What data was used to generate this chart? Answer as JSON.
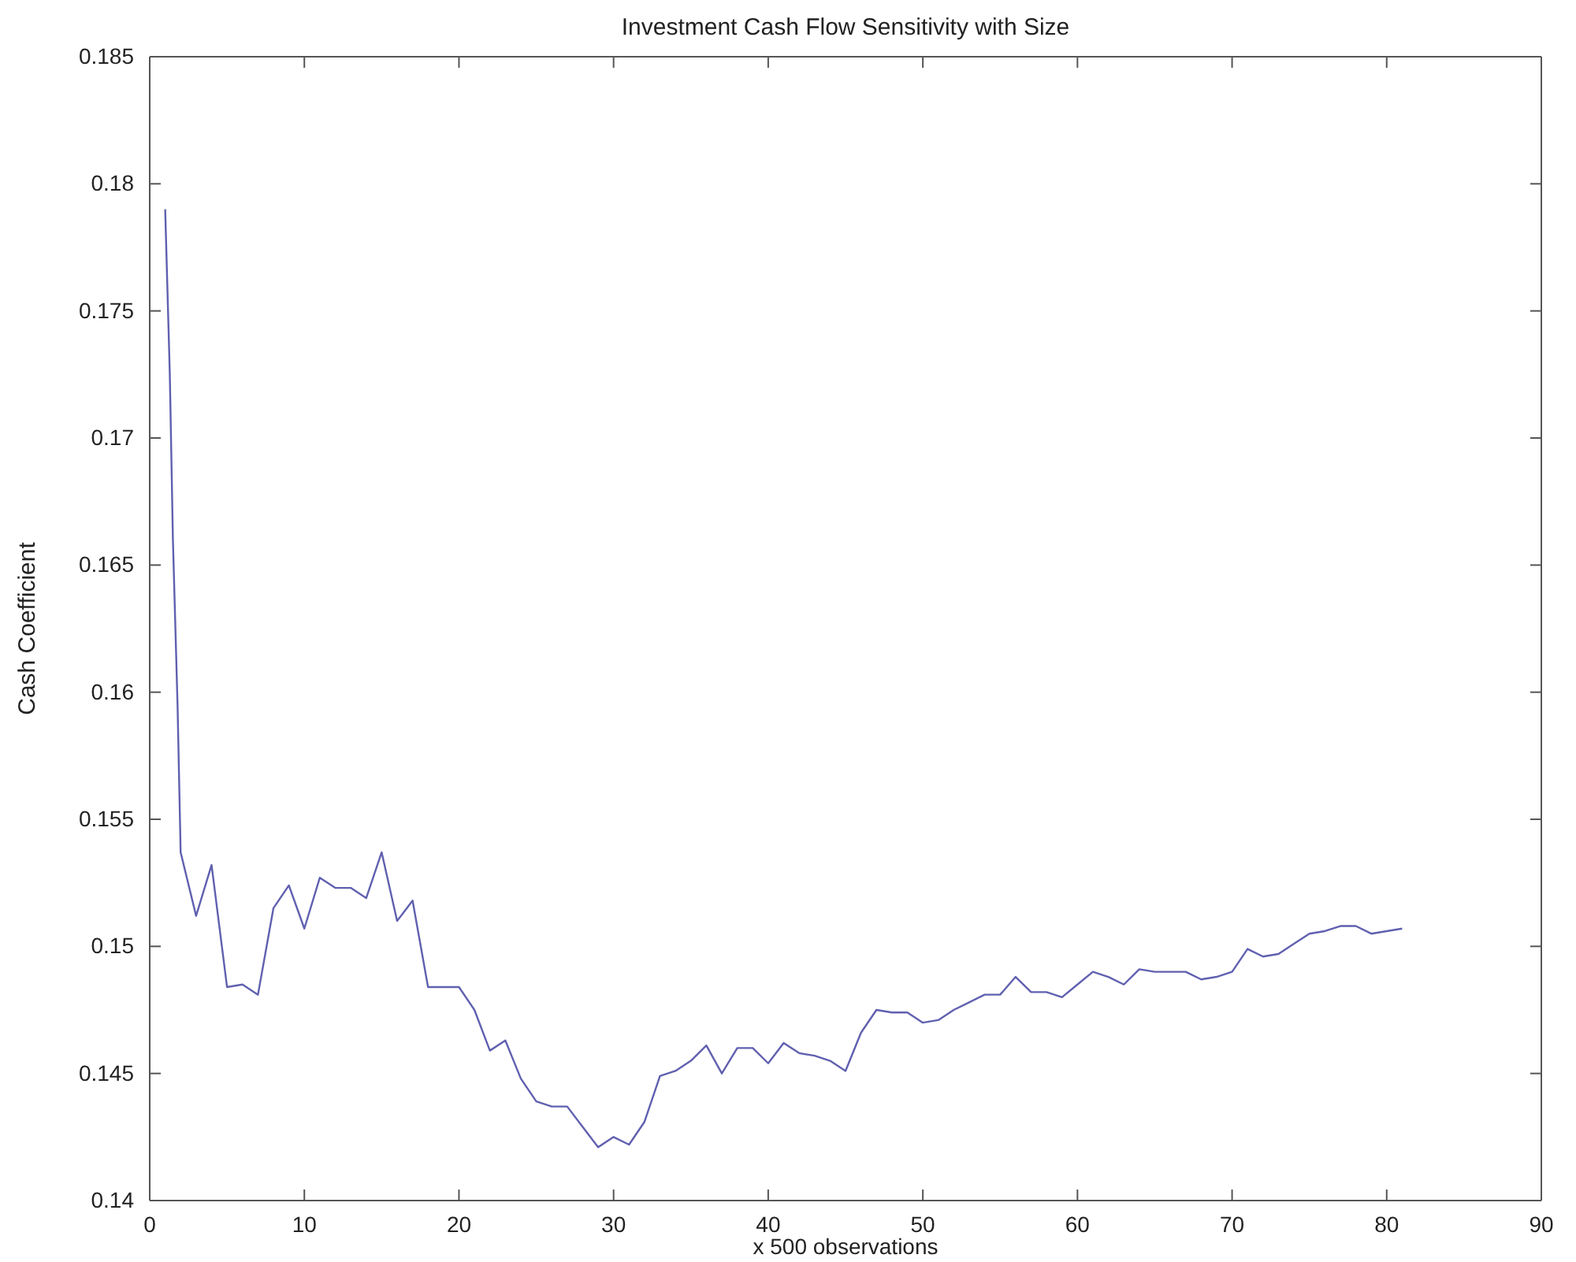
{
  "chart_data": {
    "type": "line",
    "title": "Investment Cash Flow Sensitivity with Size",
    "xlabel": "x 500 observations",
    "ylabel": "Cash Coefficient",
    "x": [
      1,
      1.3,
      1.5,
      1.8,
      2,
      3,
      4,
      5,
      6,
      7,
      8,
      9,
      10,
      11,
      12,
      13,
      14,
      15,
      16,
      17,
      18,
      19,
      20,
      21,
      22,
      23,
      24,
      25,
      26,
      27,
      28,
      29,
      30,
      31,
      32,
      33,
      34,
      35,
      36,
      37,
      38,
      39,
      40,
      41,
      42,
      43,
      44,
      45,
      46,
      47,
      48,
      49,
      50,
      51,
      52,
      53,
      54,
      55,
      56,
      57,
      58,
      59,
      60,
      61,
      62,
      63,
      64,
      65,
      66,
      67,
      68,
      69,
      70,
      71,
      72,
      73,
      74,
      75,
      76,
      77,
      78,
      79,
      80,
      81
    ],
    "series": [
      {
        "color": "#6060b0",
        "values": [
          0.179,
          0.1725,
          0.166,
          0.1595,
          0.1537,
          0.1512,
          0.1532,
          0.1484,
          0.1485,
          0.1481,
          0.1515,
          0.1524,
          0.1507,
          0.1527,
          0.1523,
          0.1523,
          0.1519,
          0.1537,
          0.151,
          0.1518,
          0.1484,
          0.1484,
          0.1484,
          0.1475,
          0.1459,
          0.1463,
          0.1448,
          0.1439,
          0.1437,
          0.1437,
          0.1429,
          0.1421,
          0.1425,
          0.1422,
          0.1431,
          0.1449,
          0.1451,
          0.1455,
          0.1461,
          0.145,
          0.146,
          0.146,
          0.1454,
          0.1462,
          0.1458,
          0.1457,
          0.1455,
          0.1451,
          0.1466,
          0.1475,
          0.1474,
          0.1474,
          0.147,
          0.1471,
          0.1475,
          0.1478,
          0.1481,
          0.1481,
          0.1488,
          0.1482,
          0.1482,
          0.148,
          0.1485,
          0.149,
          0.1488,
          0.1485,
          0.1491,
          0.149,
          0.149,
          0.149,
          0.1487,
          0.1488,
          0.149,
          0.1499,
          0.1496,
          0.1497,
          0.1501,
          0.1505,
          0.1506,
          0.1508,
          0.1508,
          0.1505,
          0.1506,
          0.1507
        ]
      }
    ],
    "xlim": [
      0,
      90
    ],
    "xticks": [
      0,
      10,
      20,
      30,
      40,
      50,
      60,
      70,
      80,
      90
    ],
    "ylim": [
      0.14,
      0.185
    ],
    "yticks": [
      0.14,
      0.145,
      0.15,
      0.155,
      0.16,
      0.165,
      0.17,
      0.175,
      0.18,
      0.185
    ],
    "grid": false,
    "marker": "none",
    "line_style": "solid"
  }
}
